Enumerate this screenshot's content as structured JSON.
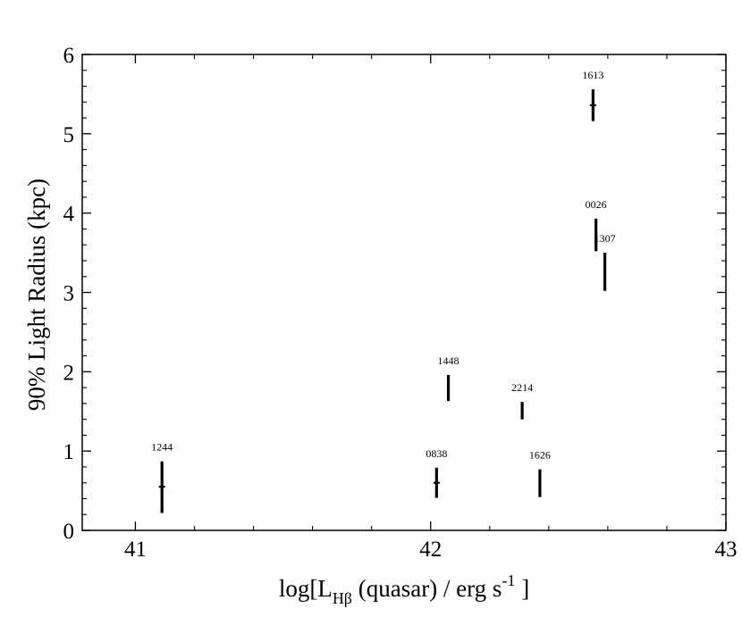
{
  "chart_data": {
    "type": "scatter",
    "title": "",
    "xlabel": {
      "prefix": "log[L",
      "sub": "Hβ",
      "middle": " (quasar) / erg s",
      "sup": "-1",
      "suffix": " ]"
    },
    "ylabel": "90% Light Radius (kpc)",
    "xlim": [
      40.82,
      43.0
    ],
    "ylim": [
      0,
      6
    ],
    "x_ticks": [
      41,
      42,
      43
    ],
    "x_tick_labels": [
      "41",
      "42",
      "43"
    ],
    "y_ticks": [
      0,
      1,
      2,
      3,
      4,
      5,
      6
    ],
    "y_tick_labels": [
      "0",
      "1",
      "2",
      "3",
      "4",
      "5",
      "6"
    ],
    "x_minor_step": 0.2,
    "y_minor_step": 0.2,
    "grid": false,
    "points": [
      {
        "label": "1244",
        "x": 41.09,
        "y": 0.55,
        "ylo": 0.22,
        "yhi": 0.87,
        "marker": true
      },
      {
        "label": "0838",
        "x": 42.02,
        "y": 0.6,
        "ylo": 0.41,
        "yhi": 0.79,
        "marker": true
      },
      {
        "label": "1448",
        "x": 42.06,
        "y": 1.8,
        "ylo": 1.63,
        "yhi": 1.96,
        "marker": false
      },
      {
        "label": "2214",
        "x": 42.31,
        "y": 1.5,
        "ylo": 1.4,
        "yhi": 1.62,
        "marker": false
      },
      {
        "label": "1626",
        "x": 42.37,
        "y": 0.6,
        "ylo": 0.42,
        "yhi": 0.77,
        "marker": false
      },
      {
        "label": "1613",
        "x": 42.55,
        "y": 5.36,
        "ylo": 5.16,
        "yhi": 5.56,
        "marker": true
      },
      {
        "label": "0026",
        "x": 42.56,
        "y": 3.72,
        "ylo": 3.52,
        "yhi": 3.93,
        "marker": false
      },
      {
        "label": "1307",
        "x": 42.59,
        "y": 3.25,
        "ylo": 3.02,
        "yhi": 3.5,
        "marker": false
      }
    ]
  }
}
